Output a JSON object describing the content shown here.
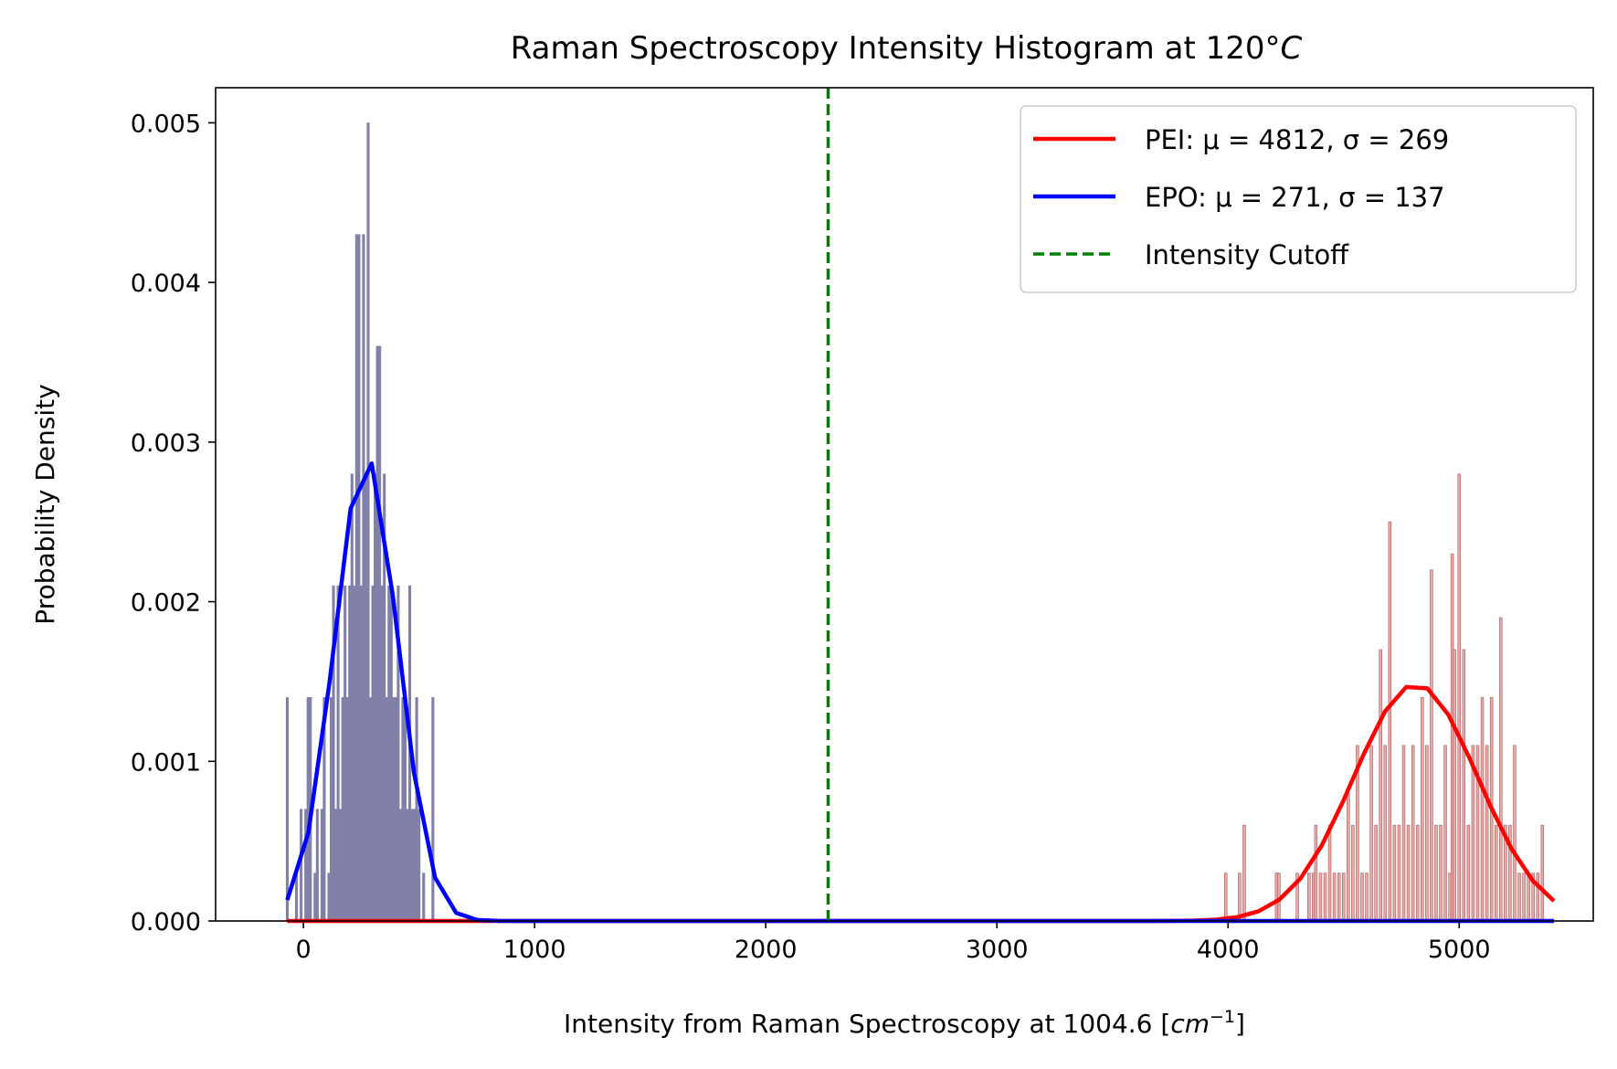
{
  "chart_data": {
    "type": "bar",
    "title": "Raman Spectroscopy Intensity Histogram at 120°",
    "title_unit": "C",
    "xlabel": "Intensity from Raman Spectroscopy at 1004.6 [",
    "xlabel_unit_base": "cm",
    "xlabel_unit_exp": "−1",
    "xlabel_close": "]",
    "ylabel": "Probability Density",
    "xlim": [
      -380,
      5580
    ],
    "ylim": [
      0,
      0.00522
    ],
    "xticks": [
      0,
      1000,
      2000,
      3000,
      4000,
      5000
    ],
    "xtick_labels": [
      "0",
      "1000",
      "2000",
      "3000",
      "4000",
      "5000"
    ],
    "yticks": [
      0,
      0.001,
      0.002,
      0.003,
      0.004,
      0.005
    ],
    "ytick_labels": [
      "0.000",
      "0.001",
      "0.002",
      "0.003",
      "0.004",
      "0.005"
    ],
    "grid": false,
    "legend_position": "top-right",
    "cutoff": 2270,
    "colors": {
      "pei_curve": "#ff0000",
      "epo_curve": "#0000ff",
      "cutoff": "#008000",
      "epo_bars": "#8080a8",
      "pei_bars": "#eda6a6",
      "pei_bar_edge": "#a06060"
    },
    "series": [
      {
        "name": "PEI",
        "legend_label": "PEI: μ = 4812, σ = 269",
        "mu": 4812,
        "sigma": 269,
        "curve_x": [
          -70,
          5410
        ],
        "hist_bin_width": 16,
        "hist": [
          [
            3990,
            0.0003
          ],
          [
            4050,
            0.0003
          ],
          [
            4070,
            0.0006
          ],
          [
            4210,
            0.0003
          ],
          [
            4220,
            0.0003
          ],
          [
            4300,
            0.0003
          ],
          [
            4350,
            0.0003
          ],
          [
            4370,
            0.0003
          ],
          [
            4380,
            0.0006
          ],
          [
            4400,
            0.0003
          ],
          [
            4420,
            0.0003
          ],
          [
            4440,
            0.0006
          ],
          [
            4460,
            0.0003
          ],
          [
            4480,
            0.0003
          ],
          [
            4500,
            0.0003
          ],
          [
            4520,
            0.0008
          ],
          [
            4540,
            0.0006
          ],
          [
            4560,
            0.0011
          ],
          [
            4580,
            0.0003
          ],
          [
            4600,
            0.0003
          ],
          [
            4620,
            0.0011
          ],
          [
            4640,
            0.0006
          ],
          [
            4660,
            0.0017
          ],
          [
            4680,
            0.0011
          ],
          [
            4700,
            0.0025
          ],
          [
            4720,
            0.0006
          ],
          [
            4740,
            0.0006
          ],
          [
            4760,
            0.0011
          ],
          [
            4780,
            0.0006
          ],
          [
            4800,
            0.0011
          ],
          [
            4820,
            0.0006
          ],
          [
            4840,
            0.0014
          ],
          [
            4860,
            0.0011
          ],
          [
            4880,
            0.0022
          ],
          [
            4900,
            0.0006
          ],
          [
            4920,
            0.0006
          ],
          [
            4940,
            0.0011
          ],
          [
            4960,
            0.0003
          ],
          [
            4970,
            0.0023
          ],
          [
            4980,
            0.0017
          ],
          [
            5000,
            0.0028
          ],
          [
            5020,
            0.0017
          ],
          [
            5040,
            0.0006
          ],
          [
            5060,
            0.0011
          ],
          [
            5080,
            0.0011
          ],
          [
            5100,
            0.0014
          ],
          [
            5120,
            0.0011
          ],
          [
            5140,
            0.0014
          ],
          [
            5160,
            0.0006
          ],
          [
            5180,
            0.0019
          ],
          [
            5200,
            0.0006
          ],
          [
            5220,
            0.0006
          ],
          [
            5240,
            0.0011
          ],
          [
            5260,
            0.0003
          ],
          [
            5280,
            0.0003
          ],
          [
            5300,
            0.0003
          ],
          [
            5320,
            0.0003
          ],
          [
            5340,
            0.0003
          ],
          [
            5360,
            0.0006
          ]
        ]
      },
      {
        "name": "EPO",
        "legend_label": "EPO: μ = 271, σ = 137",
        "mu": 271,
        "sigma": 137,
        "curve_x": [
          -70,
          5410
        ],
        "hist_bin_width": 8,
        "hist": [
          [
            -70,
            0.0014
          ],
          [
            -30,
            0.0003
          ],
          [
            -10,
            0.0007
          ],
          [
            10,
            0.0007
          ],
          [
            20,
            0.0014
          ],
          [
            30,
            0.0014
          ],
          [
            50,
            0.0003
          ],
          [
            60,
            0.0007
          ],
          [
            80,
            0.0007
          ],
          [
            90,
            0.0014
          ],
          [
            110,
            0.0003
          ],
          [
            120,
            0.0014
          ],
          [
            130,
            0.0021
          ],
          [
            140,
            0.0007
          ],
          [
            150,
            0.0021
          ],
          [
            160,
            0.0007
          ],
          [
            170,
            0.0014
          ],
          [
            180,
            0.0021
          ],
          [
            190,
            0.0014
          ],
          [
            200,
            0.0021
          ],
          [
            210,
            0.0028
          ],
          [
            220,
            0.0021
          ],
          [
            230,
            0.0043
          ],
          [
            240,
            0.0043
          ],
          [
            250,
            0.0021
          ],
          [
            260,
            0.0043
          ],
          [
            270,
            0.0028
          ],
          [
            280,
            0.005
          ],
          [
            290,
            0.0014
          ],
          [
            300,
            0.0021
          ],
          [
            310,
            0.0028
          ],
          [
            320,
            0.0036
          ],
          [
            330,
            0.0036
          ],
          [
            340,
            0.0021
          ],
          [
            350,
            0.0028
          ],
          [
            360,
            0.0014
          ],
          [
            370,
            0.0021
          ],
          [
            380,
            0.0021
          ],
          [
            390,
            0.0014
          ],
          [
            400,
            0.0014
          ],
          [
            410,
            0.0021
          ],
          [
            420,
            0.0007
          ],
          [
            430,
            0.0014
          ],
          [
            440,
            0.0014
          ],
          [
            450,
            0.0007
          ],
          [
            460,
            0.0021
          ],
          [
            470,
            0.0007
          ],
          [
            480,
            0.0007
          ],
          [
            490,
            0.0014
          ],
          [
            500,
            0.0007
          ],
          [
            520,
            0.0003
          ],
          [
            560,
            0.0014
          ]
        ]
      },
      {
        "name": "Intensity Cutoff",
        "legend_label": "Intensity Cutoff"
      }
    ]
  }
}
